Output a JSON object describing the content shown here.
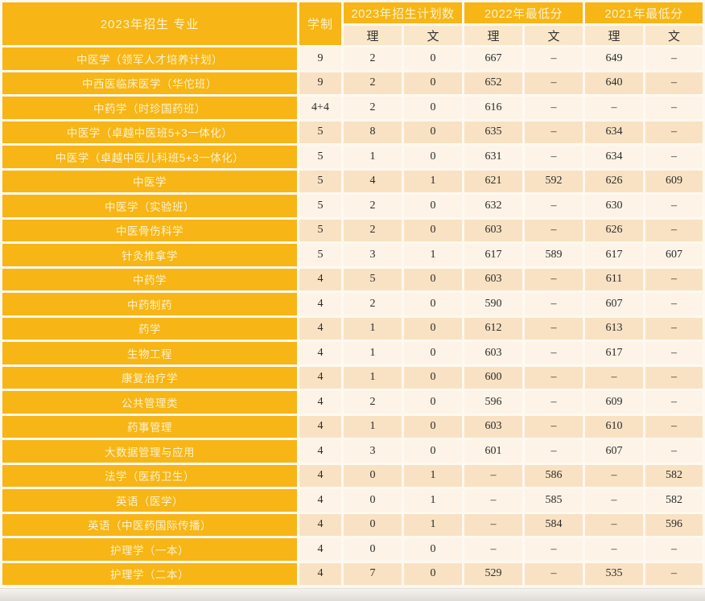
{
  "table": {
    "header": {
      "major": "2023年招生 专业",
      "duration": "学制",
      "groups": [
        "2023年招生计划数",
        "2022年最低分",
        "2021年最低分"
      ],
      "sub_headers": [
        "理",
        "文",
        "理",
        "文",
        "理",
        "文"
      ]
    },
    "rows": [
      {
        "major": "中医学（领军人才培养计划）",
        "duration": "9",
        "values": [
          "2",
          "0",
          "667",
          "–",
          "649",
          "–"
        ]
      },
      {
        "major": "中西医临床医学（华佗班）",
        "duration": "9",
        "values": [
          "2",
          "0",
          "652",
          "–",
          "640",
          "–"
        ]
      },
      {
        "major": "中药学（时珍国药班）",
        "duration": "4+4",
        "values": [
          "2",
          "0",
          "616",
          "–",
          "–",
          "–"
        ]
      },
      {
        "major": "中医学（卓越中医班5+3一体化）",
        "duration": "5",
        "values": [
          "8",
          "0",
          "635",
          "–",
          "634",
          "–"
        ]
      },
      {
        "major": "中医学（卓越中医儿科班5+3一体化）",
        "duration": "5",
        "values": [
          "1",
          "0",
          "631",
          "–",
          "634",
          "–"
        ]
      },
      {
        "major": "中医学",
        "duration": "5",
        "values": [
          "4",
          "1",
          "621",
          "592",
          "626",
          "609"
        ]
      },
      {
        "major": "中医学（实验班）",
        "duration": "5",
        "values": [
          "2",
          "0",
          "632",
          "–",
          "630",
          "–"
        ]
      },
      {
        "major": "中医骨伤科学",
        "duration": "5",
        "values": [
          "2",
          "0",
          "603",
          "–",
          "626",
          "–"
        ]
      },
      {
        "major": "针灸推拿学",
        "duration": "5",
        "values": [
          "3",
          "1",
          "617",
          "589",
          "617",
          "607"
        ]
      },
      {
        "major": "中药学",
        "duration": "4",
        "values": [
          "5",
          "0",
          "603",
          "–",
          "611",
          "–"
        ]
      },
      {
        "major": "中药制药",
        "duration": "4",
        "values": [
          "2",
          "0",
          "590",
          "–",
          "607",
          "–"
        ]
      },
      {
        "major": "药学",
        "duration": "4",
        "values": [
          "1",
          "0",
          "612",
          "–",
          "613",
          "–"
        ]
      },
      {
        "major": "生物工程",
        "duration": "4",
        "values": [
          "1",
          "0",
          "603",
          "–",
          "617",
          "–"
        ]
      },
      {
        "major": "康复治疗学",
        "duration": "4",
        "values": [
          "1",
          "0",
          "600",
          "–",
          "–",
          "–"
        ]
      },
      {
        "major": "公共管理类",
        "duration": "4",
        "values": [
          "2",
          "0",
          "596",
          "–",
          "609",
          "–"
        ]
      },
      {
        "major": "药事管理",
        "duration": "4",
        "values": [
          "1",
          "0",
          "603",
          "–",
          "610",
          "–"
        ]
      },
      {
        "major": "大数据管理与应用",
        "duration": "4",
        "values": [
          "3",
          "0",
          "601",
          "–",
          "607",
          "–"
        ]
      },
      {
        "major": "法学（医药卫生）",
        "duration": "4",
        "values": [
          "0",
          "1",
          "–",
          "586",
          "–",
          "582"
        ]
      },
      {
        "major": "英语（医学）",
        "duration": "4",
        "values": [
          "0",
          "1",
          "–",
          "585",
          "–",
          "582"
        ]
      },
      {
        "major": "英语（中医药国际传播）",
        "duration": "4",
        "values": [
          "0",
          "1",
          "–",
          "584",
          "–",
          "596"
        ]
      },
      {
        "major": "护理学（一本）",
        "duration": "4",
        "values": [
          "0",
          "0",
          "–",
          "–",
          "–",
          "–"
        ]
      },
      {
        "major": "护理学（二本）",
        "duration": "4",
        "values": [
          "7",
          "0",
          "529",
          "–",
          "535",
          "–"
        ]
      }
    ]
  },
  "colors": {
    "gold": "#F7B516",
    "gold_text": "#FDF3CC",
    "row_light": "#FDF4E7",
    "row_peach": "#F9E2C3",
    "subheader_bg": "#FAE7C9",
    "number_text": "#2B2B2B",
    "gap": "#FEF9F0"
  }
}
